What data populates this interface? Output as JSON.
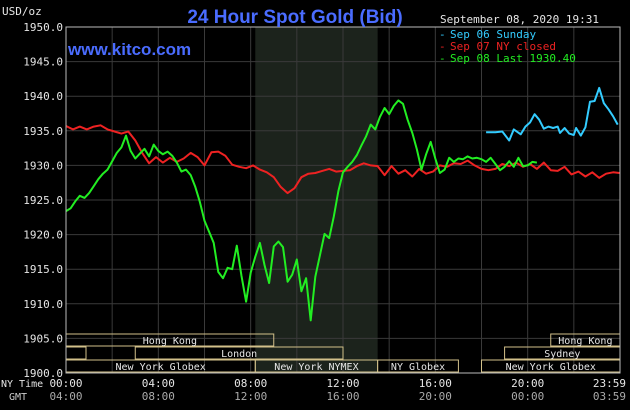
{
  "chart_data": {
    "type": "line",
    "title": "24 Hour Spot Gold (Bid)",
    "watermark": "www.kitco.com",
    "unit_label": "USD/oz",
    "timestamp": "September 08, 2020 19:31",
    "ylim": [
      1900,
      1950
    ],
    "y_ticks": [
      "1950.0",
      "1945.0",
      "1940.0",
      "1935.0",
      "1930.0",
      "1925.0",
      "1920.0",
      "1915.0",
      "1910.0",
      "1905.0",
      "1900.0"
    ],
    "x_row_label_ny": "NY Time",
    "x_row_label_gmt": "GMT",
    "x_ticks_ny": [
      "00:00",
      "04:00",
      "08:00",
      "12:00",
      "16:00",
      "20:00",
      "23:59"
    ],
    "x_ticks_gmt": [
      "04:00",
      "08:00",
      "12:00",
      "16:00",
      "20:00",
      "00:00",
      "03:59"
    ],
    "grid": true,
    "legend_placement": "top-right",
    "series": [
      {
        "name": "Sep 06 Sunday",
        "color": "#33ccff",
        "x": [
          18.2,
          18.6,
          18.9,
          19.2,
          19.4,
          19.7,
          19.9,
          20.1,
          20.3,
          20.5,
          20.7,
          20.9,
          21.1,
          21.3,
          21.4,
          21.6,
          21.8,
          22.0,
          22.1,
          22.3,
          22.5,
          22.7,
          22.9,
          23.1,
          23.3,
          23.5,
          23.7,
          23.9
        ],
        "values": [
          1934.8,
          1934.8,
          1934.9,
          1933.6,
          1935.2,
          1934.5,
          1935.6,
          1936.2,
          1937.4,
          1936.6,
          1935.3,
          1935.6,
          1935.4,
          1935.6,
          1934.7,
          1935.4,
          1934.6,
          1934.4,
          1935.4,
          1934.3,
          1935.5,
          1939.2,
          1939.3,
          1941.2,
          1939.0,
          1938.1,
          1937.1,
          1935.9
        ]
      },
      {
        "name": "Sep 07 NY closed",
        "color": "#ee2222",
        "x": [
          0.0,
          0.3,
          0.6,
          0.9,
          1.2,
          1.5,
          1.8,
          2.1,
          2.4,
          2.7,
          3.0,
          3.3,
          3.6,
          3.9,
          4.2,
          4.5,
          4.8,
          5.1,
          5.4,
          5.7,
          6.0,
          6.3,
          6.6,
          6.9,
          7.2,
          7.5,
          7.8,
          8.1,
          8.4,
          8.7,
          9.0,
          9.3,
          9.6,
          9.9,
          10.2,
          10.5,
          10.8,
          11.1,
          11.4,
          11.7,
          12.0,
          12.3,
          12.6,
          12.9,
          13.2,
          13.5,
          13.8,
          14.1,
          14.4,
          14.7,
          15.0,
          15.3,
          15.6,
          15.9,
          16.2,
          16.5,
          16.8,
          17.1,
          17.4,
          17.7,
          18.0,
          18.3,
          18.6,
          18.9,
          19.2,
          19.5,
          19.8,
          20.1,
          20.4,
          20.7,
          21.0,
          21.3,
          21.6,
          21.9,
          22.2,
          22.5,
          22.8,
          23.1,
          23.4,
          23.7,
          23.98
        ],
        "values": [
          1935.7,
          1935.2,
          1935.6,
          1935.2,
          1935.6,
          1935.8,
          1935.2,
          1934.9,
          1934.6,
          1934.9,
          1933.6,
          1931.8,
          1930.3,
          1931.2,
          1930.4,
          1931.1,
          1930.5,
          1931.0,
          1931.8,
          1931.2,
          1930.0,
          1931.9,
          1932.0,
          1931.4,
          1930.1,
          1929.8,
          1929.6,
          1930.0,
          1929.4,
          1929.0,
          1928.3,
          1926.9,
          1926.0,
          1926.7,
          1928.3,
          1928.8,
          1928.9,
          1929.2,
          1929.5,
          1929.1,
          1929.2,
          1929.3,
          1929.9,
          1930.3,
          1930.0,
          1929.9,
          1928.6,
          1929.9,
          1928.8,
          1929.3,
          1928.4,
          1929.5,
          1928.8,
          1929.1,
          1930.0,
          1929.8,
          1930.3,
          1930.2,
          1930.7,
          1930.0,
          1929.5,
          1929.3,
          1929.5,
          1930.2,
          1929.9,
          1930.4,
          1929.8,
          1930.2,
          1929.5,
          1930.4,
          1929.3,
          1929.2,
          1929.8,
          1928.7,
          1929.1,
          1928.4,
          1929.0,
          1928.2,
          1928.8,
          1929.0,
          1928.9
        ]
      },
      {
        "name": "Sep 08 Last 1930.40",
        "color": "#22ee22",
        "x": [
          0.0,
          0.2,
          0.4,
          0.6,
          0.8,
          1.0,
          1.2,
          1.4,
          1.6,
          1.8,
          2.0,
          2.2,
          2.4,
          2.6,
          2.8,
          3.0,
          3.2,
          3.4,
          3.6,
          3.8,
          4.0,
          4.2,
          4.4,
          4.6,
          4.8,
          5.0,
          5.2,
          5.4,
          5.6,
          5.8,
          6.0,
          6.2,
          6.4,
          6.6,
          6.8,
          7.0,
          7.2,
          7.4,
          7.6,
          7.8,
          8.0,
          8.2,
          8.4,
          8.6,
          8.8,
          9.0,
          9.2,
          9.4,
          9.6,
          9.8,
          10.0,
          10.2,
          10.4,
          10.6,
          10.8,
          11.0,
          11.2,
          11.4,
          11.6,
          11.8,
          12.0,
          12.2,
          12.4,
          12.6,
          12.8,
          13.0,
          13.2,
          13.4,
          13.6,
          13.8,
          14.0,
          14.2,
          14.4,
          14.6,
          14.8,
          15.0,
          15.2,
          15.4,
          15.6,
          15.8,
          16.0,
          16.2,
          16.4,
          16.6,
          16.8,
          17.0,
          17.2,
          17.4,
          17.6,
          17.8,
          18.0,
          18.2,
          18.4,
          18.6,
          18.8,
          19.0,
          19.2,
          19.4,
          19.6,
          19.8,
          20.0,
          20.2,
          20.4
        ],
        "values": [
          1923.4,
          1923.8,
          1924.8,
          1925.6,
          1925.3,
          1926.0,
          1927.0,
          1928.0,
          1928.8,
          1929.4,
          1930.6,
          1931.8,
          1932.6,
          1934.3,
          1932.1,
          1931.0,
          1931.7,
          1932.4,
          1931.3,
          1933.0,
          1932.1,
          1931.6,
          1932.0,
          1931.4,
          1930.4,
          1929.1,
          1929.4,
          1928.6,
          1926.9,
          1924.7,
          1922.0,
          1920.4,
          1918.8,
          1914.6,
          1913.7,
          1915.2,
          1915.0,
          1918.4,
          1914.1,
          1910.3,
          1914.5,
          1916.8,
          1918.8,
          1915.6,
          1913.0,
          1918.3,
          1919.0,
          1918.2,
          1913.2,
          1914.2,
          1916.4,
          1911.8,
          1913.7,
          1907.6,
          1913.9,
          1917.0,
          1920.1,
          1919.5,
          1922.6,
          1926.3,
          1929.0,
          1929.8,
          1930.5,
          1931.5,
          1932.9,
          1934.2,
          1935.9,
          1935.2,
          1937.0,
          1938.3,
          1937.4,
          1938.6,
          1939.4,
          1938.9,
          1936.6,
          1934.7,
          1932.3,
          1929.4,
          1931.6,
          1933.4,
          1931.0,
          1928.9,
          1929.4,
          1931.1,
          1930.5,
          1931.0,
          1930.9,
          1931.3,
          1931.0,
          1931.1,
          1930.9,
          1930.5,
          1931.1,
          1930.2,
          1929.3,
          1929.8,
          1930.6,
          1929.8,
          1931.1,
          1929.9,
          1930.0,
          1930.5,
          1930.4
        ]
      }
    ],
    "sessions": [
      {
        "label": "Hong Kong",
        "row": 0,
        "x0": -3.0,
        "x1": 9.0
      },
      {
        "label": "London",
        "row": 1,
        "x0": 3.0,
        "x1": 12.0
      },
      {
        "label": "New York NYMEX",
        "row": 2,
        "x0": 8.2,
        "x1": 13.5
      },
      {
        "label": "New York Globex",
        "row": 2,
        "x0": 0.0,
        "x1": 8.2
      },
      {
        "label": "NY Globex",
        "row": 2,
        "x0": 13.5,
        "x1": 17.0
      },
      {
        "label": "Hong Kong",
        "row": 0,
        "x0": 21.0,
        "x1": 24.0
      },
      {
        "label": "Sydney",
        "row": 1,
        "x0": 19.0,
        "x1": 24.0
      },
      {
        "label": "New York Globex",
        "row": 2,
        "x0": 18.0,
        "x1": 24.0
      }
    ],
    "session_left_stub": true,
    "shaded_range": [
      8.2,
      13.5
    ]
  }
}
